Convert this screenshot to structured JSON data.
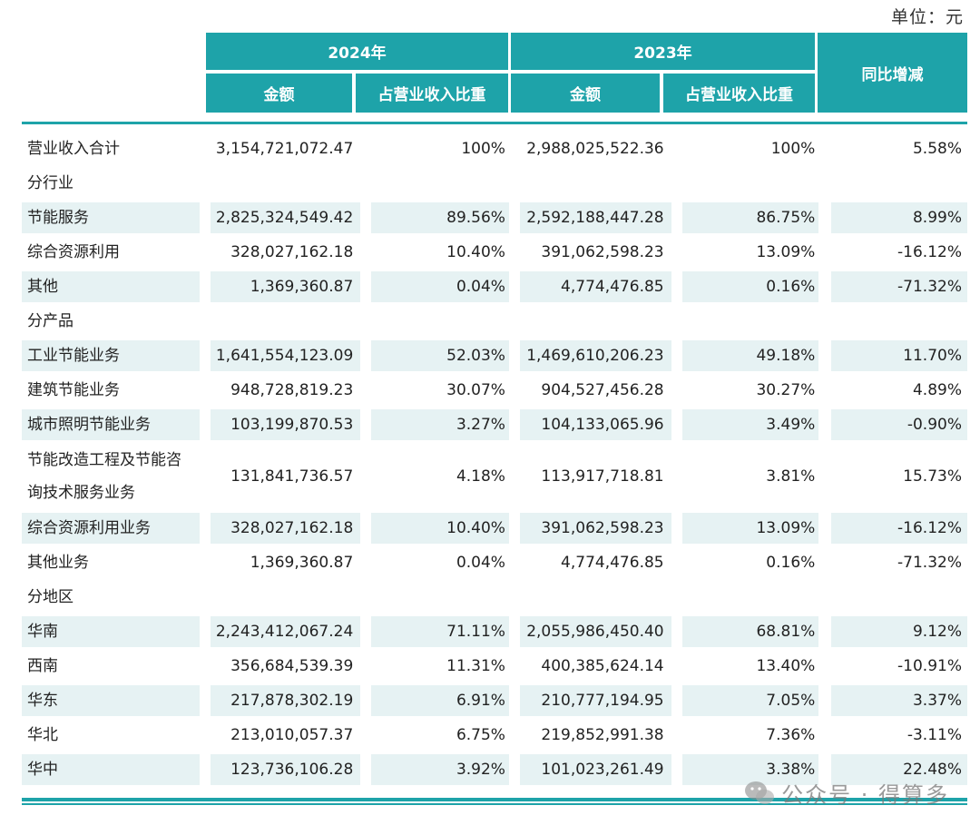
{
  "unit_label": "单位：元",
  "header": {
    "year_2024": "2024年",
    "year_2023": "2023年",
    "yoy": "同比增减",
    "amount_2024": "金额",
    "ratio_2024": "占营业收入比重",
    "amount_2023": "金额",
    "ratio_2023": "占营业收入比重"
  },
  "rows": [
    {
      "type": "data",
      "shade": false,
      "label": "营业收入合计",
      "amount_2024": "3,154,721,072.47",
      "ratio_2024": "100%",
      "amount_2023": "2,988,025,522.36",
      "ratio_2023": "100%",
      "yoy": "5.58%"
    },
    {
      "type": "category",
      "label": "分行业"
    },
    {
      "type": "data",
      "shade": true,
      "label": "节能服务",
      "amount_2024": "2,825,324,549.42",
      "ratio_2024": "89.56%",
      "amount_2023": "2,592,188,447.28",
      "ratio_2023": "86.75%",
      "yoy": "8.99%"
    },
    {
      "type": "data",
      "shade": false,
      "label": "综合资源利用",
      "amount_2024": "328,027,162.18",
      "ratio_2024": "10.40%",
      "amount_2023": "391,062,598.23",
      "ratio_2023": "13.09%",
      "yoy": "-16.12%"
    },
    {
      "type": "data",
      "shade": true,
      "label": "其他",
      "amount_2024": "1,369,360.87",
      "ratio_2024": "0.04%",
      "amount_2023": "4,774,476.85",
      "ratio_2023": "0.16%",
      "yoy": "-71.32%"
    },
    {
      "type": "category",
      "label": "分产品"
    },
    {
      "type": "data",
      "shade": true,
      "label": "工业节能业务",
      "amount_2024": "1,641,554,123.09",
      "ratio_2024": "52.03%",
      "amount_2023": "1,469,610,206.23",
      "ratio_2023": "49.18%",
      "yoy": "11.70%"
    },
    {
      "type": "data",
      "shade": false,
      "label": "建筑节能业务",
      "amount_2024": "948,728,819.23",
      "ratio_2024": "30.07%",
      "amount_2023": "904,527,456.28",
      "ratio_2023": "30.27%",
      "yoy": "4.89%"
    },
    {
      "type": "data",
      "shade": true,
      "label": "城市照明节能业务",
      "amount_2024": "103,199,870.53",
      "ratio_2024": "3.27%",
      "amount_2023": "104,133,065.96",
      "ratio_2023": "3.49%",
      "yoy": "-0.90%"
    },
    {
      "type": "data",
      "shade": false,
      "two_line": true,
      "label": "节能改造工程及节能咨",
      "label2": "询技术服务业务",
      "amount_2024": "131,841,736.57",
      "ratio_2024": "4.18%",
      "amount_2023": "113,917,718.81",
      "ratio_2023": "3.81%",
      "yoy": "15.73%"
    },
    {
      "type": "data",
      "shade": true,
      "label": "综合资源利用业务",
      "amount_2024": "328,027,162.18",
      "ratio_2024": "10.40%",
      "amount_2023": "391,062,598.23",
      "ratio_2023": "13.09%",
      "yoy": "-16.12%"
    },
    {
      "type": "data",
      "shade": false,
      "label": "其他业务",
      "amount_2024": "1,369,360.87",
      "ratio_2024": "0.04%",
      "amount_2023": "4,774,476.85",
      "ratio_2023": "0.16%",
      "yoy": "-71.32%"
    },
    {
      "type": "category",
      "label": "分地区"
    },
    {
      "type": "data",
      "shade": true,
      "label": "华南",
      "amount_2024": "2,243,412,067.24",
      "ratio_2024": "71.11%",
      "amount_2023": "2,055,986,450.40",
      "ratio_2023": "68.81%",
      "yoy": "9.12%"
    },
    {
      "type": "data",
      "shade": false,
      "label": "西南",
      "amount_2024": "356,684,539.39",
      "ratio_2024": "11.31%",
      "amount_2023": "400,385,624.14",
      "ratio_2023": "13.40%",
      "yoy": "-10.91%"
    },
    {
      "type": "data",
      "shade": true,
      "label": "华东",
      "amount_2024": "217,878,302.19",
      "ratio_2024": "6.91%",
      "amount_2023": "210,777,194.95",
      "ratio_2023": "7.05%",
      "yoy": "3.37%"
    },
    {
      "type": "data",
      "shade": false,
      "label": "华北",
      "amount_2024": "213,010,057.37",
      "ratio_2024": "6.75%",
      "amount_2023": "219,852,991.38",
      "ratio_2023": "7.36%",
      "yoy": "-3.11%"
    },
    {
      "type": "data",
      "shade": true,
      "label": "华中",
      "amount_2024": "123,736,106.28",
      "ratio_2024": "3.92%",
      "amount_2023": "101,023,261.49",
      "ratio_2023": "3.38%",
      "yoy": "22.48%"
    }
  ],
  "watermark": "公众号 · 得算多",
  "colors": {
    "header_bg": "#1ea3a9",
    "row_shade": "#e6f2f3"
  },
  "icons": {
    "watermark": "wechat-icon"
  }
}
